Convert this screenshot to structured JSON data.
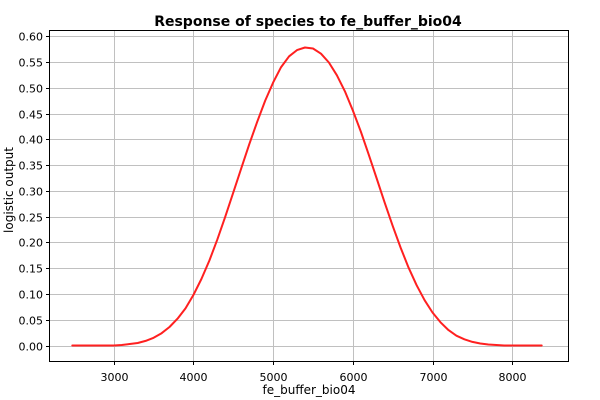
{
  "chart_data": {
    "type": "line",
    "title": "Response of species to fe_buffer_bio04",
    "xlabel": "fe_buffer_bio04",
    "ylabel": "logistic output",
    "xlim": [
      2200,
      8700
    ],
    "ylim": [
      -0.03,
      0.61
    ],
    "xticks": [
      3000,
      4000,
      5000,
      6000,
      7000,
      8000
    ],
    "xtick_labels": [
      "3000",
      "4000",
      "5000",
      "6000",
      "7000",
      "8000"
    ],
    "yticks": [
      0.0,
      0.05,
      0.1,
      0.15,
      0.2,
      0.25,
      0.3,
      0.35,
      0.4,
      0.45,
      0.5,
      0.55,
      0.6
    ],
    "ytick_labels": [
      "0.00",
      "0.05",
      "0.10",
      "0.15",
      "0.20",
      "0.25",
      "0.30",
      "0.35",
      "0.40",
      "0.45",
      "0.50",
      "0.55",
      "0.60"
    ],
    "grid": true,
    "legend": "none",
    "series": [
      {
        "color": "#ff2020",
        "x": [
          2480,
          3000,
          3100,
          3200,
          3300,
          3400,
          3500,
          3600,
          3700,
          3800,
          3900,
          4000,
          4100,
          4200,
          4300,
          4400,
          4500,
          4600,
          4700,
          4800,
          4900,
          5000,
          5100,
          5200,
          5300,
          5400,
          5500,
          5600,
          5700,
          5800,
          5900,
          6000,
          6100,
          6200,
          6300,
          6400,
          6500,
          6600,
          6700,
          6800,
          6900,
          7000,
          7100,
          7200,
          7300,
          7400,
          7500,
          7600,
          7700,
          7800,
          7900,
          8000,
          8100,
          8200,
          8370
        ],
        "y": [
          0.0,
          0.0,
          0.001,
          0.003,
          0.005,
          0.009,
          0.015,
          0.024,
          0.036,
          0.052,
          0.072,
          0.098,
          0.129,
          0.165,
          0.206,
          0.25,
          0.297,
          0.344,
          0.39,
          0.434,
          0.475,
          0.51,
          0.54,
          0.561,
          0.573,
          0.578,
          0.576,
          0.566,
          0.549,
          0.524,
          0.493,
          0.456,
          0.415,
          0.37,
          0.324,
          0.277,
          0.232,
          0.19,
          0.151,
          0.117,
          0.088,
          0.064,
          0.045,
          0.03,
          0.019,
          0.012,
          0.007,
          0.004,
          0.002,
          0.001,
          0.0,
          0.0,
          0.0,
          0.0,
          0.0
        ]
      }
    ]
  }
}
